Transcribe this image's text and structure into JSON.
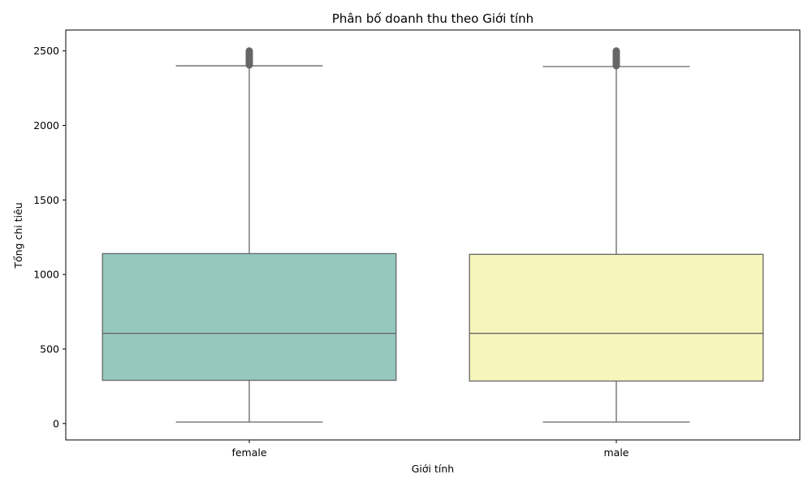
{
  "chart_data": {
    "type": "box",
    "title": "Phân bố doanh thu theo Giới tính",
    "xlabel": "Giới tính",
    "ylabel": "Tổng chi tiêu",
    "ylim": [
      -110,
      2640
    ],
    "yticks": [
      0,
      500,
      1000,
      1500,
      2000,
      2500
    ],
    "grid": false,
    "categories": [
      "female",
      "male"
    ],
    "boxes": [
      {
        "category": "female",
        "color": "#96c8bf",
        "whisker_low": 10,
        "q1": 290,
        "median": 605,
        "q3": 1140,
        "whisker_high": 2400,
        "outliers_range": [
          2405,
          2500
        ]
      },
      {
        "category": "male",
        "color": "#f6f6bc",
        "whisker_low": 10,
        "q1": 285,
        "median": 605,
        "q3": 1135,
        "whisker_high": 2395,
        "outliers_range": [
          2400,
          2500
        ]
      }
    ],
    "colors": {
      "line": "#666666",
      "outlier": "#666666",
      "axis": "#000000"
    }
  }
}
